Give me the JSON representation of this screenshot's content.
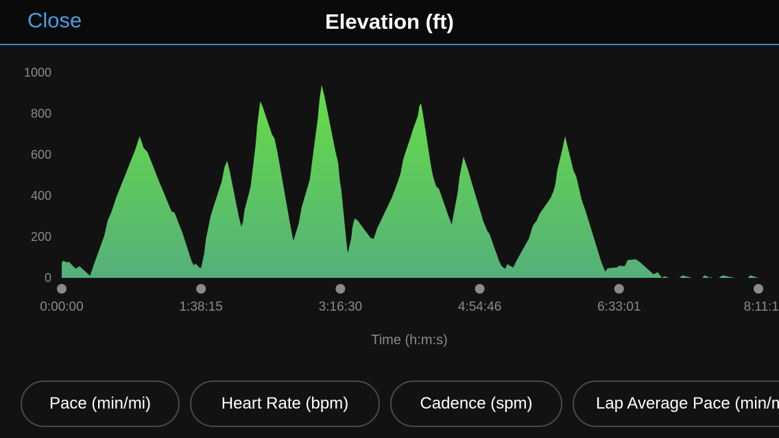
{
  "header": {
    "close_label": "Close",
    "title": "Elevation (ft)"
  },
  "chart_data": {
    "type": "area",
    "title": "Elevation (ft)",
    "xlabel": "Time (h:m:s)",
    "ylabel": "",
    "ylim": [
      0,
      1000
    ],
    "y_ticks": [
      "1000",
      "800",
      "600",
      "400",
      "200",
      "0"
    ],
    "x_ticks": [
      "0:00:00",
      "1:38:15",
      "3:16:30",
      "4:54:46",
      "6:33:01",
      "8:11:1"
    ],
    "grid": false,
    "fill_color_top": "#66dd44",
    "fill_color_bottom": "#55b07a",
    "x_unit": "seconds",
    "x": [
      0,
      300,
      1200,
      2100,
      3300,
      4300,
      5000,
      5600,
      5900,
      6300,
      7000,
      7600,
      8000,
      8400,
      9000,
      9800,
      10500,
      11000,
      11700,
      12100,
      12400,
      13200,
      14100,
      14800,
      15200,
      15700,
      16500,
      17000,
      18000,
      18600,
      19100,
      20100,
      20800,
      21300,
      22000,
      23000,
      23600,
      24300,
      25400,
      26000,
      26800,
      27400,
      27800,
      28800,
      29479
    ],
    "series": [
      {
        "values": [
          70,
          80,
          10,
          320,
          690,
          420,
          250,
          60,
          50,
          300,
          570,
          250,
          450,
          860,
          680,
          180,
          480,
          940,
          560,
          120,
          290,
          190,
          430,
          700,
          850,
          500,
          260,
          590,
          230,
          60,
          50,
          280,
          420,
          690,
          380,
          30,
          60,
          90,
          0,
          0,
          0,
          0,
          0,
          0,
          0
        ]
      }
    ]
  },
  "metric_tabs": [
    {
      "label": "Pace (min/mi)"
    },
    {
      "label": "Heart Rate (bpm)"
    },
    {
      "label": "Cadence (spm)"
    },
    {
      "label": "Lap Average Pace (min/mi)"
    }
  ]
}
